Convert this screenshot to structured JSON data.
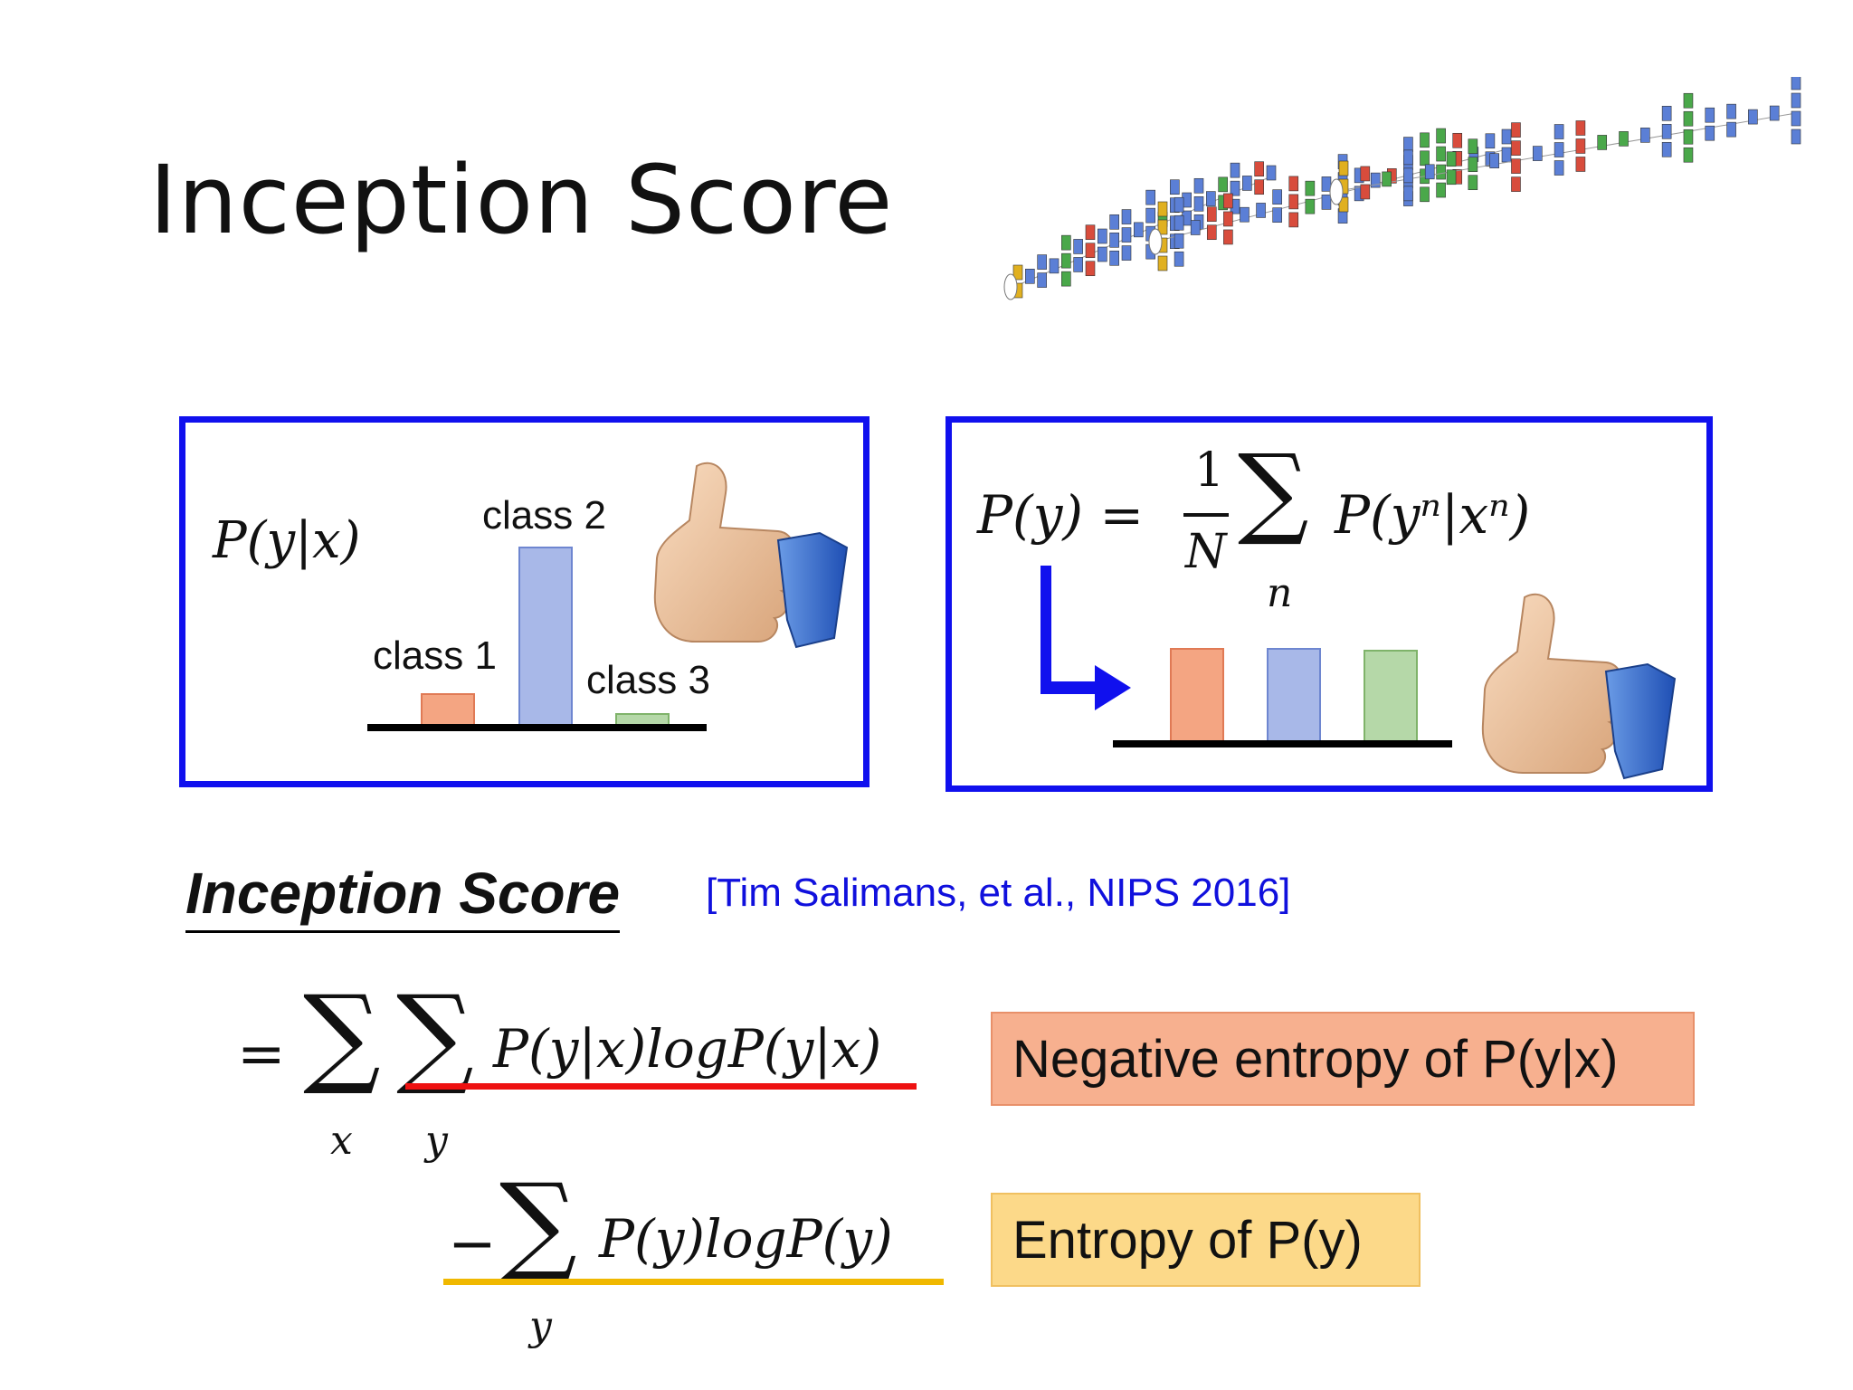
{
  "slide": {
    "title": "Inception Score",
    "subtitle": "Inception Score",
    "citation": "[Tim Salimans, et al., NIPS 2016]"
  },
  "left_panel": {
    "formula": "P(y|x)",
    "classes": [
      {
        "label": "class 1",
        "value": 0.18,
        "color": "#f4a582"
      },
      {
        "label": "class 2",
        "value": 1.0,
        "color": "#a8b8e8"
      },
      {
        "label": "class 3",
        "value": 0.07,
        "color": "#b5d8a8"
      }
    ]
  },
  "right_panel": {
    "formula_lhs": "P(y) =",
    "fraction_num": "1",
    "fraction_den": "N",
    "sum_index": "n",
    "formula_rhs": "P(yⁿ|xⁿ)",
    "bars": [
      {
        "value": 1.0,
        "color": "#f4a582"
      },
      {
        "value": 1.0,
        "color": "#a8b8e8"
      },
      {
        "value": 0.98,
        "color": "#b5d8a8"
      }
    ]
  },
  "equation": {
    "line1_prefix": "=",
    "sum_index_x": "x",
    "sum_index_y": "y",
    "line1_term": "P(y|x)logP(y|x)",
    "line2_prefix": "−",
    "line2_sum_index": "y",
    "line2_term": "P(y)logP(y)"
  },
  "annotations": {
    "negative_entropy": "Negative entropy of P(y|x)",
    "entropy": "Entropy of P(y)",
    "negative_entropy_color": "#f7b08f",
    "entropy_color": "#fcd989",
    "underline_red": "#ee1111",
    "underline_yellow": "#f0b800"
  },
  "icons": [
    "network-architecture-icon",
    "thumbs-up-icon",
    "arrow-icon"
  ]
}
